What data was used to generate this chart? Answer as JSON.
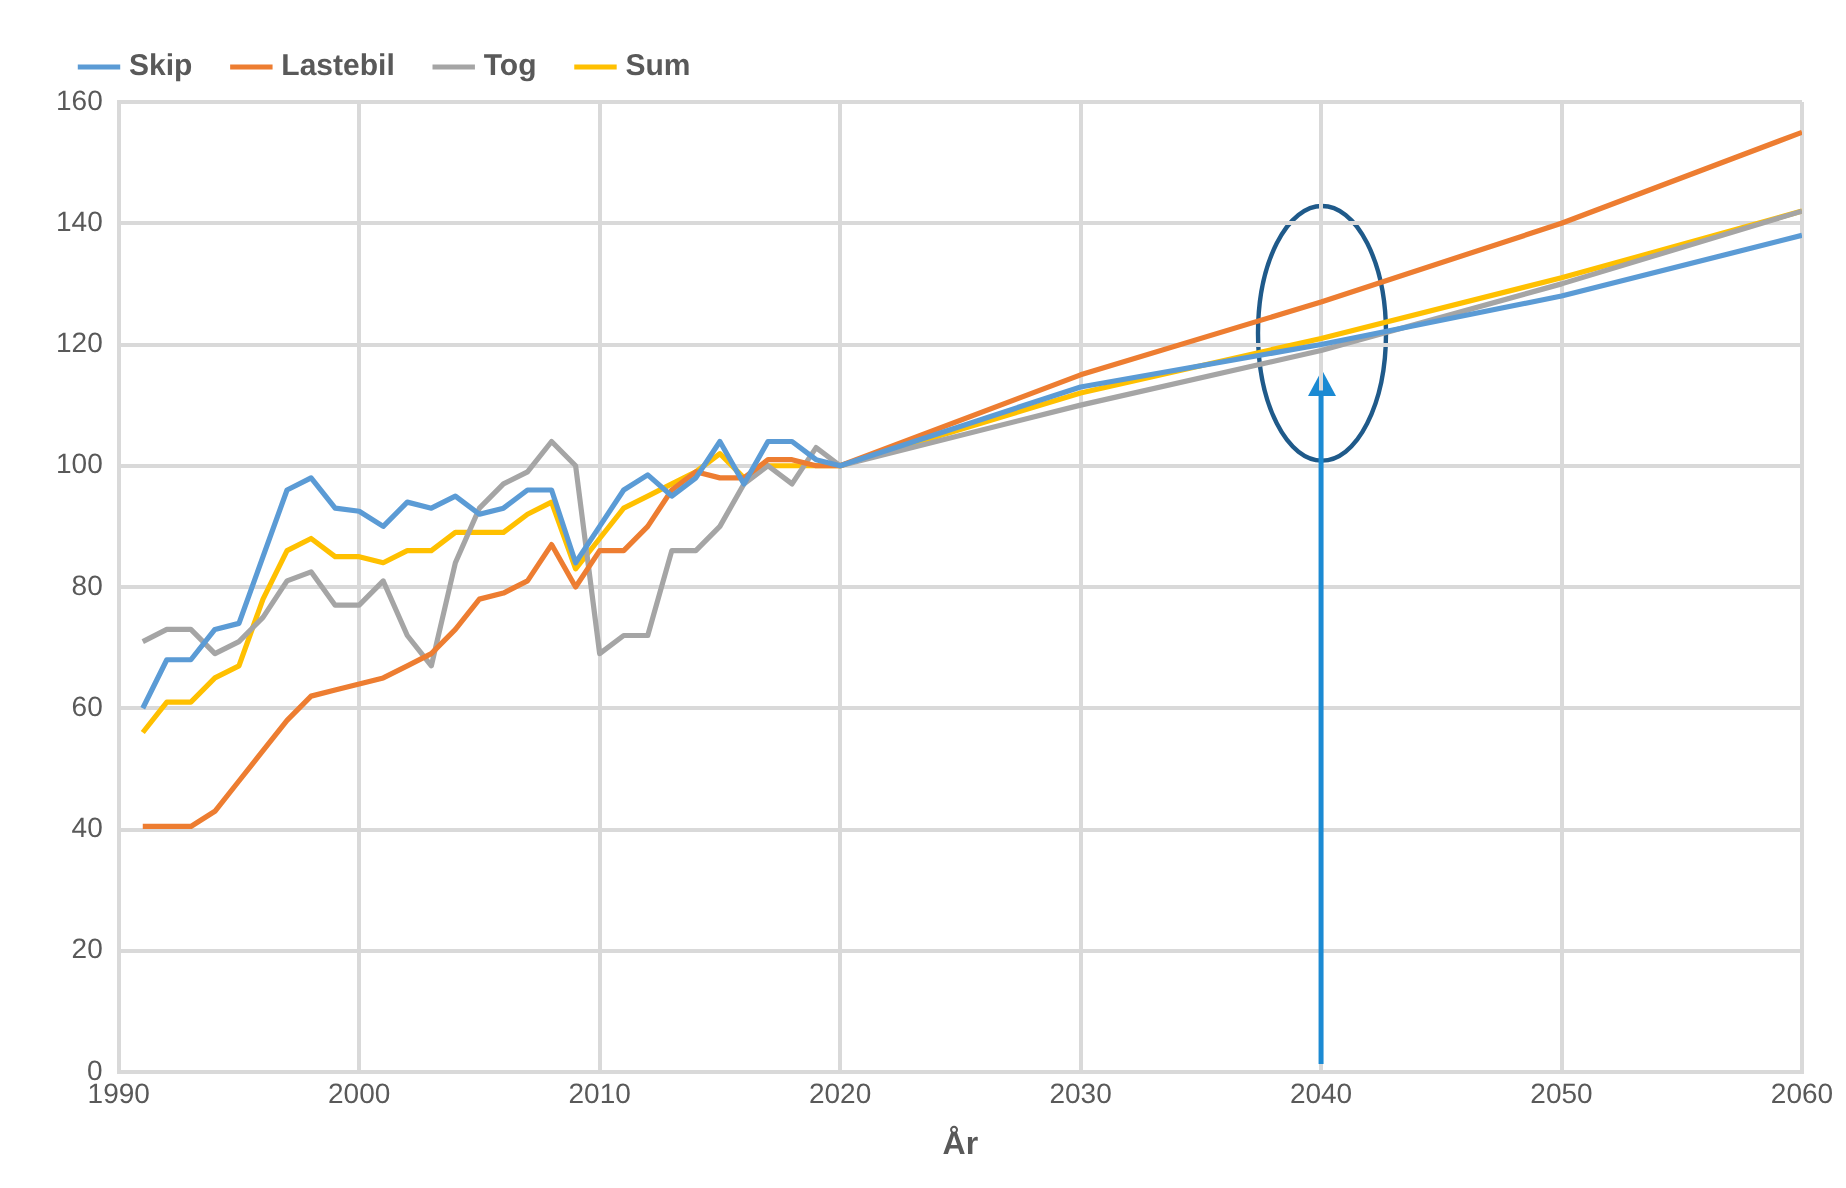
{
  "chart_data": {
    "type": "line",
    "xlabel": "År",
    "x": [
      1991,
      1992,
      1993,
      1994,
      1995,
      1996,
      1997,
      1998,
      1999,
      2000,
      2001,
      2002,
      2003,
      2004,
      2005,
      2006,
      2007,
      2008,
      2009,
      2010,
      2011,
      2012,
      2013,
      2014,
      2015,
      2016,
      2017,
      2018,
      2019,
      2020,
      2030,
      2040,
      2050,
      2060
    ],
    "series": [
      {
        "name": "Skip",
        "color": "#5b9bd5",
        "values": [
          60,
          68,
          68,
          73,
          74,
          85,
          96,
          98,
          93,
          92.5,
          90,
          94,
          93,
          95,
          92,
          93,
          96,
          96,
          84,
          90,
          96,
          98.5,
          95,
          98,
          104,
          97,
          104,
          104,
          101,
          100,
          113,
          120,
          128,
          138
        ]
      },
      {
        "name": "Lastebil",
        "color": "#ed7d31",
        "values": [
          40.5,
          40.5,
          40.5,
          43,
          48,
          53,
          58,
          62,
          63,
          64,
          65,
          67,
          69,
          73,
          78,
          79,
          81,
          87,
          80,
          86,
          86,
          90,
          96,
          99,
          98,
          98,
          101,
          101,
          100,
          100,
          115,
          127,
          140,
          155
        ]
      },
      {
        "name": "Tog",
        "color": "#a5a5a5",
        "values": [
          71,
          73,
          73,
          69,
          71,
          75,
          81,
          82.5,
          77,
          77,
          81,
          72,
          67,
          84,
          93,
          97,
          99,
          104,
          100,
          69,
          72,
          72,
          86,
          86,
          90,
          97,
          100,
          97,
          103,
          100,
          110,
          119,
          130,
          142
        ]
      },
      {
        "name": "Sum",
        "color": "#ffc000",
        "values": [
          56,
          61,
          61,
          65,
          67,
          78,
          86,
          88,
          85,
          85,
          84,
          86,
          86,
          89,
          89,
          89,
          92,
          94,
          83,
          88,
          93,
          95,
          97,
          99,
          102,
          98,
          100,
          100,
          100,
          100,
          112,
          121,
          131,
          142
        ]
      }
    ],
    "xlim": [
      1990,
      2060
    ],
    "xticks": [
      1990,
      2000,
      2010,
      2020,
      2030,
      2040,
      2050,
      2060
    ],
    "ylim": [
      0,
      160
    ],
    "yticks": [
      0,
      20,
      40,
      60,
      80,
      100,
      120,
      140,
      160
    ],
    "ref_lines": [
      {
        "axis": "x",
        "value": 2040,
        "color": "#1b8ad3"
      }
    ],
    "grid": true,
    "legend": "top left",
    "marker": "none",
    "line_style": "solid"
  }
}
